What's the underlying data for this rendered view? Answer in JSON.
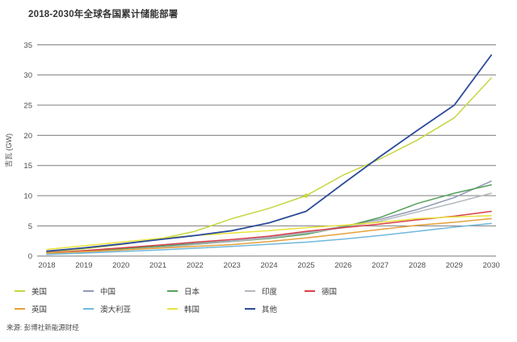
{
  "title": "2018-2030年全球各国累计储能部署",
  "source": "来源: 彭博社新能源财经",
  "chart_data": {
    "type": "line",
    "title": "2018-2030年全球各国累计储能部署",
    "xlabel": "",
    "ylabel": "吉瓦 (GW)",
    "ylim": [
      0,
      35
    ],
    "yticks": [
      0,
      5,
      10,
      15,
      20,
      25,
      30,
      35
    ],
    "grid": "horizontal",
    "gridline_color": "#7d7d7d",
    "tick_color": "#4d4d4d",
    "legend_position": "bottom",
    "x": [
      2018,
      2019,
      2020,
      2021,
      2022,
      2023,
      2024,
      2025,
      2026,
      2027,
      2028,
      2029,
      2030
    ],
    "series": [
      {
        "key": "us",
        "name": "美国",
        "color": "#c6d63f",
        "values": [
          0.7,
          1.2,
          1.9,
          2.8,
          4.1,
          6.2,
          7.9,
          10.0,
          13.4,
          16.1,
          19.2,
          22.9,
          29.5
        ]
      },
      {
        "key": "china",
        "name": "中国",
        "color": "#8f9ab5",
        "values": [
          0.5,
          0.9,
          1.3,
          1.7,
          2.1,
          2.5,
          3.1,
          3.9,
          4.9,
          6.1,
          7.7,
          9.7,
          12.4
        ]
      },
      {
        "key": "japan",
        "name": "日本",
        "color": "#55a05a",
        "values": [
          0.5,
          0.8,
          1.2,
          1.6,
          2.0,
          2.4,
          2.9,
          3.6,
          4.8,
          6.4,
          8.7,
          10.4,
          11.8
        ]
      },
      {
        "key": "india",
        "name": "印度",
        "color": "#b4b9be",
        "values": [
          0.3,
          0.6,
          1.0,
          1.4,
          1.9,
          2.4,
          3.0,
          3.8,
          4.7,
          5.8,
          7.3,
          8.8,
          10.4
        ]
      },
      {
        "key": "germany",
        "name": "德国",
        "color": "#d9404a",
        "values": [
          0.55,
          0.9,
          1.35,
          1.8,
          2.3,
          2.75,
          3.3,
          4.1,
          4.7,
          5.3,
          6.0,
          6.6,
          7.4
        ]
      },
      {
        "key": "uk",
        "name": "英国",
        "color": "#e6a13c",
        "values": [
          0.5,
          0.75,
          1.0,
          1.3,
          1.6,
          1.9,
          2.4,
          3.0,
          3.7,
          4.4,
          5.1,
          5.6,
          6.2
        ]
      },
      {
        "key": "australia",
        "name": "澳大利亚",
        "color": "#70b8dc",
        "values": [
          0.25,
          0.5,
          0.75,
          1.0,
          1.3,
          1.6,
          1.95,
          2.3,
          2.8,
          3.4,
          4.1,
          4.8,
          5.4
        ]
      },
      {
        "key": "korea",
        "name": "韩国",
        "color": "#e8e33c",
        "values": [
          1.1,
          1.7,
          2.3,
          2.9,
          3.4,
          3.8,
          4.2,
          4.7,
          5.1,
          5.6,
          6.2,
          6.5,
          6.7
        ]
      },
      {
        "key": "others",
        "name": "其他",
        "color": "#2c4b9a",
        "values": [
          0.8,
          1.35,
          2.0,
          2.7,
          3.4,
          4.2,
          5.5,
          7.4,
          12.0,
          16.5,
          20.8,
          25.0,
          33.3
        ]
      }
    ],
    "marker": {
      "series_key": "us",
      "x": 2025,
      "value": 10.0
    },
    "legend_rows": [
      [
        "us",
        "china",
        "japan",
        "india",
        "germany"
      ],
      [
        "uk",
        "australia",
        "korea",
        "others"
      ]
    ]
  }
}
